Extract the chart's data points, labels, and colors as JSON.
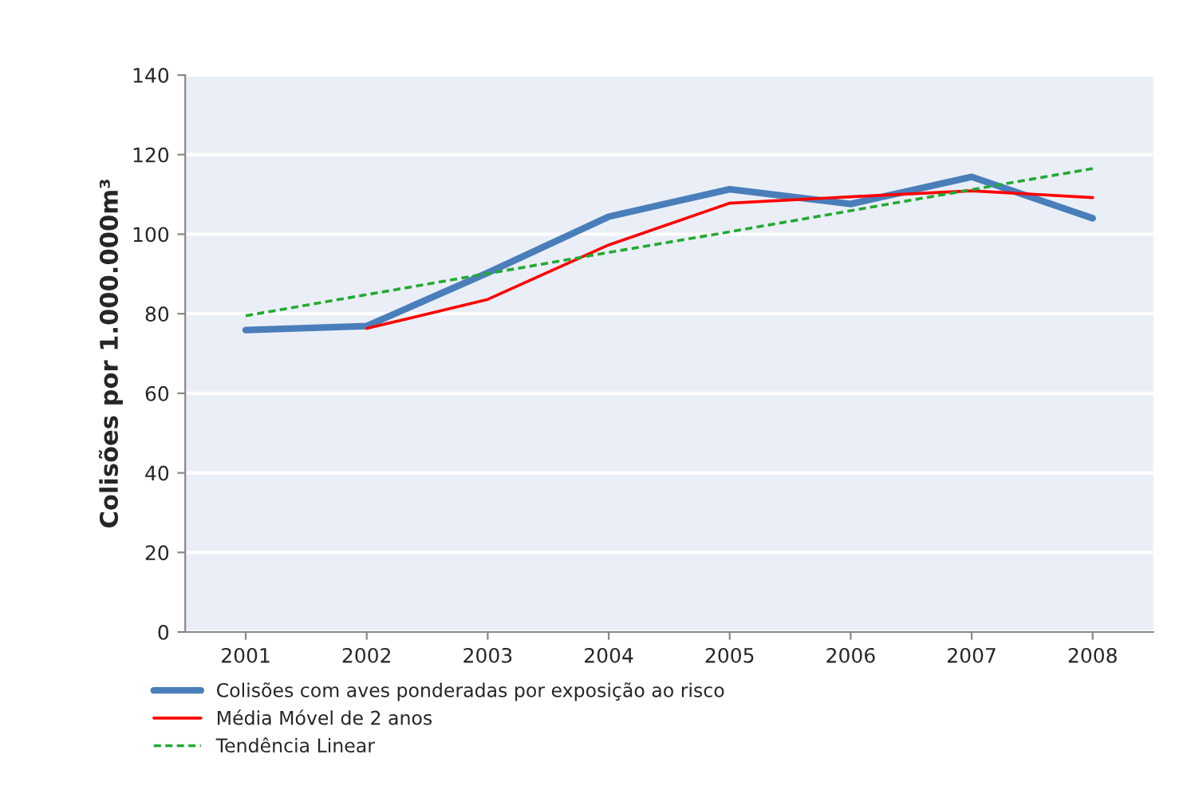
{
  "chart_data": {
    "type": "line",
    "ylabel": "Colisões por 1.000.000m³",
    "categories": [
      "2001",
      "2002",
      "2003",
      "2004",
      "2005",
      "2006",
      "2007",
      "2008"
    ],
    "series": [
      {
        "name": "Colisões com aves ponderadas por exposição ao risco",
        "color": "#4a7ebb",
        "values": [
          75.9,
          76.9,
          90.3,
          104.4,
          111.3,
          107.6,
          114.4,
          104.0
        ]
      },
      {
        "name": "Média Móvel de 2 anos",
        "color": "#ff0000",
        "values": [
          null,
          76.3,
          83.6,
          97.3,
          107.8,
          109.4,
          110.9,
          109.2
        ]
      },
      {
        "name": "Tendência Linear",
        "color": "#22aa33",
        "line_style": "dashed",
        "values": [
          79.5,
          84.8,
          90.1,
          95.4,
          100.6,
          105.9,
          111.2,
          116.5
        ]
      }
    ],
    "ylim": [
      0,
      140
    ],
    "yticks": [
      0,
      20,
      40,
      60,
      80,
      100,
      120,
      140
    ],
    "grid": "y",
    "legend": "bottom"
  }
}
